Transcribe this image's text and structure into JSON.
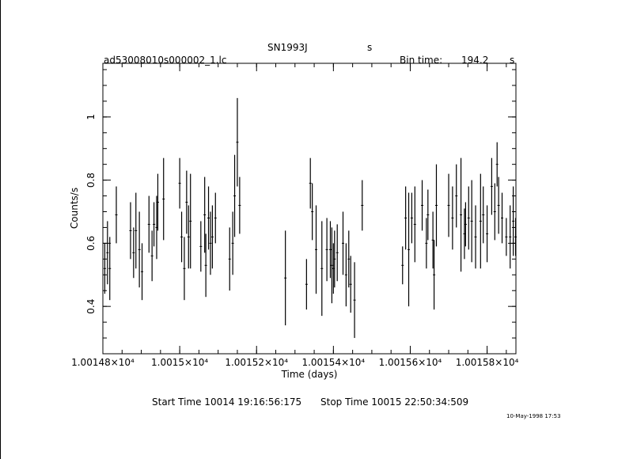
{
  "chart_data": {
    "type": "scatter",
    "title": "SN1993J",
    "title_suffix": "s",
    "file_label": "ad53008010s000002_1.lc",
    "bin_time_label": "Bin time:",
    "bin_time_value": "194.2",
    "bin_time_unit": "s",
    "xlabel": "Time (days)",
    "ylabel": "Counts/s",
    "x_ticks": [
      {
        "value": 10014.8,
        "label": "1.00148×10⁴"
      },
      {
        "value": 10015.0,
        "label": "1.0015×10⁴"
      },
      {
        "value": 10015.2,
        "label": "1.00152×10⁴"
      },
      {
        "value": 10015.4,
        "label": "1.00154×10⁴"
      },
      {
        "value": 10015.6,
        "label": "1.00156×10⁴"
      },
      {
        "value": 10015.8,
        "label": "1.00158×10⁴"
      }
    ],
    "y_ticks": [
      {
        "value": 0.4,
        "label": "0.4"
      },
      {
        "value": 0.6,
        "label": "0.6"
      },
      {
        "value": 0.8,
        "label": "0.8"
      },
      {
        "value": 1.0,
        "label": "1"
      }
    ],
    "xlim": [
      10014.8,
      10015.875
    ],
    "ylim": [
      0.25,
      1.17
    ],
    "grid": false,
    "series": [
      {
        "points": [
          [
            10014.805,
            0.52,
            0.08
          ],
          [
            10014.812,
            0.57,
            0.1
          ],
          [
            10014.818,
            0.52,
            0.1
          ],
          [
            10014.835,
            0.69,
            0.09
          ],
          [
            10014.872,
            0.64,
            0.09
          ],
          [
            10014.88,
            0.57,
            0.08
          ],
          [
            10014.886,
            0.64,
            0.12
          ],
          [
            10014.895,
            0.58,
            0.12
          ],
          [
            10014.902,
            0.51,
            0.09
          ],
          [
            10014.92,
            0.66,
            0.09
          ],
          [
            10014.928,
            0.56,
            0.08
          ],
          [
            10014.933,
            0.66,
            0.07
          ],
          [
            10014.94,
            0.65,
            0.1
          ],
          [
            10014.943,
            0.73,
            0.09
          ],
          [
            10014.958,
            0.74,
            0.13
          ],
          [
            10015.0,
            0.79,
            0.08
          ],
          [
            10015.005,
            0.62,
            0.08
          ],
          [
            10015.012,
            0.52,
            0.1
          ],
          [
            10015.018,
            0.73,
            0.1
          ],
          [
            10015.023,
            0.62,
            0.1
          ],
          [
            10015.028,
            0.67,
            0.15
          ],
          [
            10015.055,
            0.59,
            0.08
          ],
          [
            10015.065,
            0.69,
            0.12
          ],
          [
            10015.068,
            0.53,
            0.1
          ],
          [
            10015.075,
            0.68,
            0.1
          ],
          [
            10015.08,
            0.6,
            0.1
          ],
          [
            10015.085,
            0.62,
            0.1
          ],
          [
            10015.093,
            0.68,
            0.08
          ],
          [
            10015.13,
            0.55,
            0.1
          ],
          [
            10015.138,
            0.6,
            0.1
          ],
          [
            10015.143,
            0.75,
            0.13
          ],
          [
            10015.15,
            0.92,
            0.14
          ],
          [
            10015.156,
            0.72,
            0.09
          ],
          [
            10015.275,
            0.49,
            0.15
          ],
          [
            10015.33,
            0.47,
            0.08
          ],
          [
            10015.34,
            0.79,
            0.08
          ],
          [
            10015.345,
            0.7,
            0.09
          ],
          [
            10015.355,
            0.58,
            0.14
          ],
          [
            10015.37,
            0.52,
            0.15
          ],
          [
            10015.383,
            0.58,
            0.1
          ],
          [
            10015.392,
            0.58,
            0.09
          ],
          [
            10015.396,
            0.53,
            0.12
          ],
          [
            10015.4,
            0.52,
            0.08
          ],
          [
            10015.403,
            0.55,
            0.09
          ],
          [
            10015.41,
            0.57,
            0.09
          ],
          [
            10015.425,
            0.6,
            0.1
          ],
          [
            10015.433,
            0.5,
            0.1
          ],
          [
            10015.44,
            0.55,
            0.09
          ],
          [
            10015.445,
            0.47,
            0.09
          ],
          [
            10015.455,
            0.42,
            0.12
          ],
          [
            10015.475,
            0.72,
            0.08
          ],
          [
            10015.58,
            0.53,
            0.06
          ],
          [
            10015.588,
            0.68,
            0.1
          ],
          [
            10015.596,
            0.58,
            0.18
          ],
          [
            10015.604,
            0.68,
            0.08
          ],
          [
            10015.612,
            0.66,
            0.12
          ],
          [
            10015.631,
            0.72,
            0.08
          ],
          [
            10015.642,
            0.6,
            0.08
          ],
          [
            10015.646,
            0.69,
            0.08
          ],
          [
            10015.659,
            0.61,
            0.09
          ],
          [
            10015.662,
            0.5,
            0.11
          ],
          [
            10015.668,
            0.72,
            0.13
          ],
          [
            10015.7,
            0.72,
            0.1
          ],
          [
            10015.71,
            0.68,
            0.1
          ],
          [
            10015.72,
            0.75,
            0.1
          ],
          [
            10015.732,
            0.69,
            0.18
          ],
          [
            10015.741,
            0.63,
            0.08
          ],
          [
            10015.744,
            0.66,
            0.07
          ],
          [
            10015.752,
            0.68,
            0.1
          ],
          [
            10015.76,
            0.67,
            0.13
          ],
          [
            10015.77,
            0.62,
            0.1
          ],
          [
            10015.783,
            0.67,
            0.15
          ],
          [
            10015.79,
            0.69,
            0.09
          ],
          [
            10015.8,
            0.63,
            0.09
          ],
          [
            10015.812,
            0.78,
            0.09
          ],
          [
            10015.82,
            0.7,
            0.09
          ],
          [
            10015.826,
            0.85,
            0.07
          ],
          [
            10015.83,
            0.72,
            0.09
          ],
          [
            10015.839,
            0.68,
            0.08
          ],
          [
            10015.85,
            0.62,
            0.06
          ],
          [
            10015.86,
            0.62,
            0.1
          ],
          [
            10015.868,
            0.67,
            0.11
          ],
          [
            10015.874,
            0.62,
            0.06
          ]
        ]
      }
    ]
  },
  "footer": {
    "start_time": "Start Time 10014 19:16:56:175",
    "stop_time": "Stop Time 10015 22:50:34:509",
    "date_stamp": "10-May-1998 17:53"
  }
}
